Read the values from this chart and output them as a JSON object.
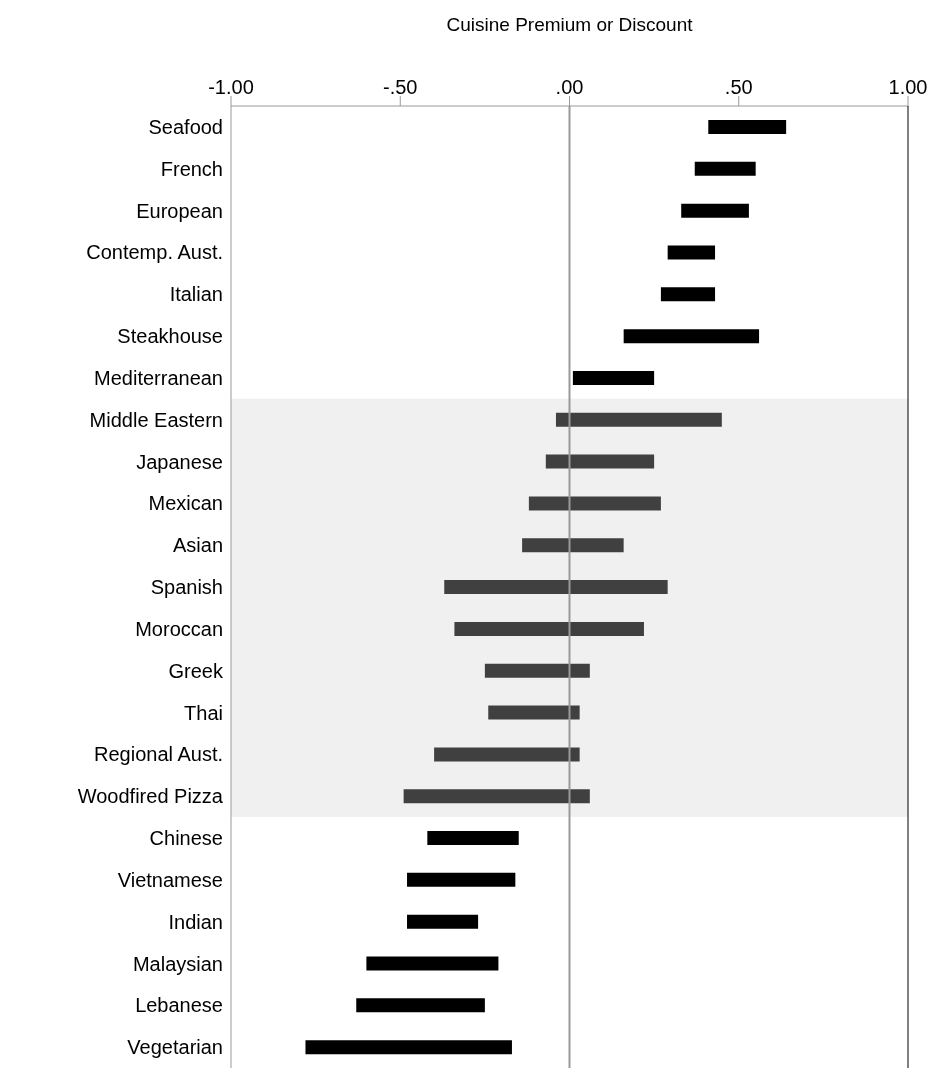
{
  "chart_data": {
    "type": "bar",
    "orientation": "horizontal",
    "xlabel": "Cuisine Premium or Discount",
    "categories": [
      "Seafood",
      "French",
      "European",
      "Contemp. Aust.",
      "Italian",
      "Steakhouse",
      "Mediterranean",
      "Middle Eastern",
      "Japanese",
      "Mexican",
      "Asian",
      "Spanish",
      "Moroccan",
      "Greek",
      "Thai",
      "Regional Aust.",
      "Woodfired Pizza",
      "Chinese",
      "Vietnamese",
      "Indian",
      "Malaysian",
      "Lebanese",
      "Vegetarian"
    ],
    "base": [
      0.41,
      0.37,
      0.33,
      0.29,
      0.27,
      0.16,
      0.01,
      -0.04,
      -0.07,
      -0.12,
      -0.14,
      -0.37,
      -0.34,
      -0.25,
      -0.24,
      -0.4,
      -0.49,
      -0.42,
      -0.48,
      -0.48,
      -0.6,
      -0.63,
      -0.78
    ],
    "values": [
      0.23,
      0.18,
      0.2,
      0.14,
      0.16,
      0.4,
      0.24,
      0.49,
      0.32,
      0.39,
      0.3,
      0.66,
      0.56,
      0.31,
      0.27,
      0.43,
      0.55,
      0.27,
      0.32,
      0.21,
      0.39,
      0.38,
      0.61
    ],
    "colors": [
      "#000000",
      "#000000",
      "#000000",
      "#000000",
      "#000000",
      "#000000",
      "#000000",
      "#404040",
      "#404040",
      "#404040",
      "#404040",
      "#404040",
      "#404040",
      "#404040",
      "#404040",
      "#404040",
      "#404040",
      "#000000",
      "#000000",
      "#000000",
      "#000000",
      "#000000",
      "#000000"
    ],
    "xlim": [
      -1,
      1
    ],
    "xticks": [
      {
        "value": -1,
        "label": "-1.00"
      },
      {
        "value": -0.5,
        "label": "-.50"
      },
      {
        "value": 0,
        "label": ".00"
      },
      {
        "value": 0.5,
        "label": ".50"
      },
      {
        "value": 1,
        "label": "1.00"
      }
    ],
    "ref_lines": [
      {
        "axis": "x",
        "value": 0,
        "color": "#999999"
      }
    ],
    "bands": [
      {
        "axis": "y",
        "from": "Middle Eastern",
        "to": "Woodfired Pizza",
        "color": "#f0f0f0"
      }
    ]
  }
}
